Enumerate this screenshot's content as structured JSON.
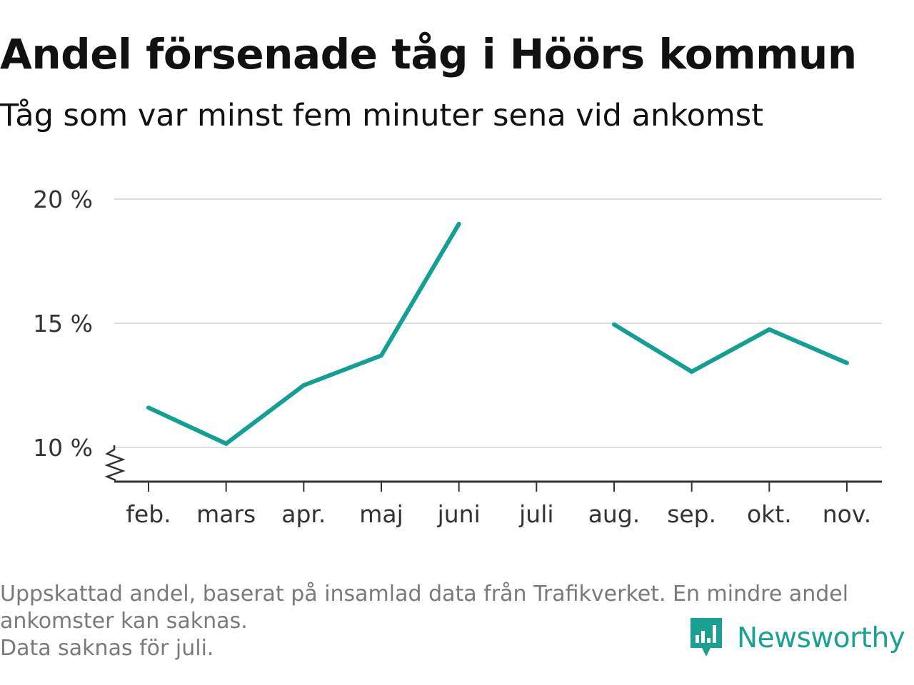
{
  "title": "Andel försenade tåg i Höörs kommun",
  "subtitle": "Tåg som var minst fem minuter sena vid ankomst",
  "footnote": {
    "line1": "Uppskattad andel, baserat på insamlad data från Trafikverket. En mindre andel",
    "line2": "ankomster kan saknas.",
    "line3": "Data saknas för juli."
  },
  "brand": {
    "name": "Newsworthy",
    "icon": "newsworthy-logo-icon",
    "color": "#1aa192"
  },
  "colors": {
    "line": "#13a092",
    "grid": "#dddddd",
    "axis": "#333333"
  },
  "chart_data": {
    "type": "line",
    "title": "Andel försenade tåg i Höörs kommun",
    "subtitle": "Tåg som var minst fem minuter sena vid ankomst",
    "xlabel": "",
    "ylabel": "",
    "categories": [
      "feb.",
      "mars",
      "apr.",
      "maj",
      "juni",
      "juli",
      "aug.",
      "sep.",
      "okt.",
      "nov."
    ],
    "series": [
      {
        "values": [
          11.6,
          10.15,
          12.5,
          13.7,
          19.0,
          null,
          14.95,
          13.05,
          14.75,
          13.4
        ]
      }
    ],
    "ylim": [
      8.6,
      20
    ],
    "yticks": [
      10,
      15,
      20
    ],
    "ytick_labels": [
      "10 %",
      "15 %",
      "20 %"
    ],
    "y_axis_break": true,
    "grid": true,
    "legend": "none"
  }
}
